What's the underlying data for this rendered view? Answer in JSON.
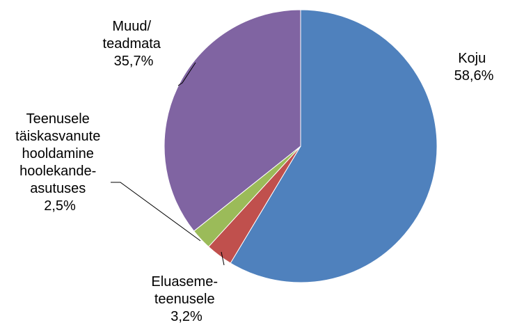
{
  "chart_data": {
    "type": "pie",
    "title": "",
    "start_angle_deg": 0,
    "direction": "clockwise",
    "slices": [
      {
        "lines": [
          "Koju",
          "58,6%"
        ],
        "value": 58.6,
        "color": "#4F81BD"
      },
      {
        "lines": [
          "Eluaseme-",
          "teenusele",
          "3,2%"
        ],
        "value": 3.2,
        "color": "#C0504D"
      },
      {
        "lines": [
          "Teenusele",
          "täiskasvanute",
          "hooldamine",
          "hoolekande-",
          "asutuses",
          "2,5%"
        ],
        "value": 2.5,
        "color": "#9BBB59"
      },
      {
        "lines": [
          "Muud/",
          "teadmata",
          "35,7%"
        ],
        "value": 35.7,
        "color": "#8064A2"
      }
    ]
  }
}
